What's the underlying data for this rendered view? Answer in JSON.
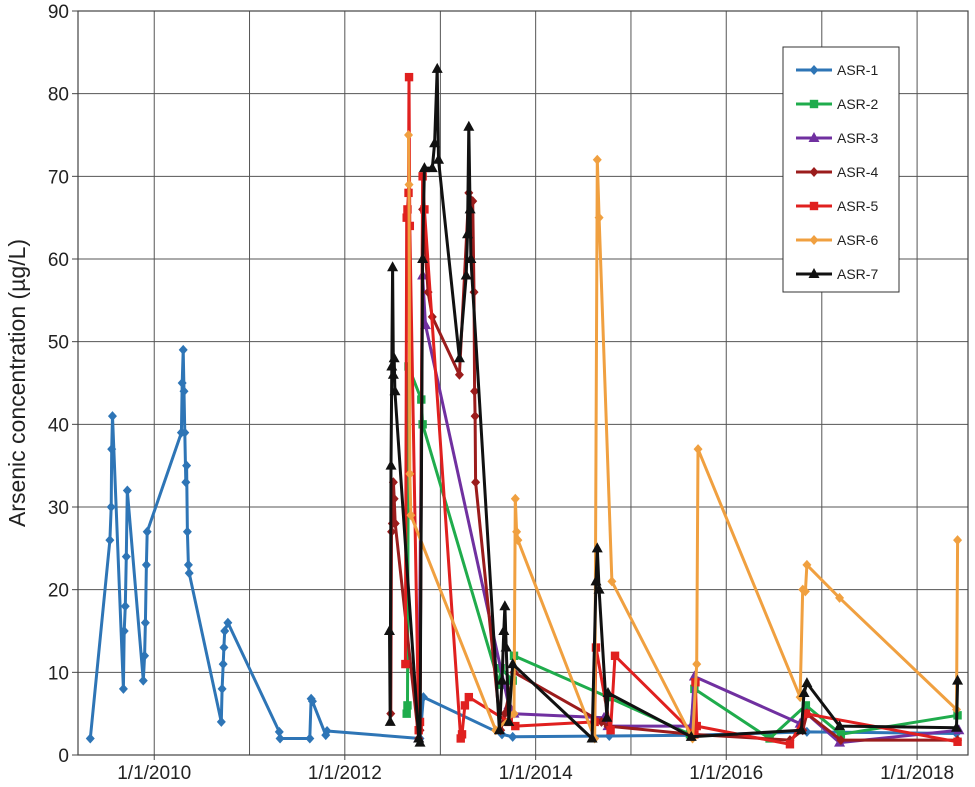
{
  "chart_data": {
    "type": "line",
    "title": "",
    "xlabel": "",
    "ylabel": "Arsenic concentration (µg/L)",
    "ylim": [
      0,
      90
    ],
    "xlim": [
      "2009-03-15",
      "2018-07-15"
    ],
    "y_ticks": [
      "0",
      "10",
      "20",
      "30",
      "40",
      "50",
      "60",
      "70",
      "80",
      "90"
    ],
    "x_ticks": [
      {
        "date": "2010-01-01",
        "label": "1/1/2010"
      },
      {
        "date": "2012-01-01",
        "label": "1/1/2012"
      },
      {
        "date": "2014-01-01",
        "label": "1/1/2014"
      },
      {
        "date": "2016-01-01",
        "label": "1/1/2016"
      },
      {
        "date": "2018-01-01",
        "label": "1/1/2018"
      }
    ],
    "x_grid": [
      "2009-01-01",
      "2010-01-01",
      "2011-01-01",
      "2012-01-01",
      "2013-01-01",
      "2014-01-01",
      "2015-01-01",
      "2016-01-01",
      "2017-01-01",
      "2018-01-01"
    ],
    "grid": true,
    "legend_position": "top-right",
    "series": [
      {
        "name": "ASR-1",
        "color": "#2e75b6",
        "marker": "diamond",
        "points": [
          [
            "2009-05-01",
            2
          ],
          [
            "2009-07-15",
            26
          ],
          [
            "2009-07-20",
            30
          ],
          [
            "2009-07-22",
            37
          ],
          [
            "2009-07-25",
            41
          ],
          [
            "2009-09-05",
            8
          ],
          [
            "2009-09-08",
            15
          ],
          [
            "2009-09-12",
            18
          ],
          [
            "2009-09-16",
            24
          ],
          [
            "2009-09-20",
            32
          ],
          [
            "2009-11-20",
            9
          ],
          [
            "2009-11-25",
            12
          ],
          [
            "2009-11-28",
            16
          ],
          [
            "2009-12-02",
            23
          ],
          [
            "2009-12-05",
            27
          ],
          [
            "2010-04-15",
            39
          ],
          [
            "2010-04-18",
            45
          ],
          [
            "2010-04-22",
            49
          ],
          [
            "2010-04-25",
            44
          ],
          [
            "2010-04-28",
            39
          ],
          [
            "2010-05-02",
            33
          ],
          [
            "2010-05-05",
            35
          ],
          [
            "2010-05-08",
            27
          ],
          [
            "2010-05-12",
            23
          ],
          [
            "2010-05-15",
            22
          ],
          [
            "2010-09-15",
            4
          ],
          [
            "2010-09-18",
            8
          ],
          [
            "2010-09-22",
            11
          ],
          [
            "2010-09-25",
            13
          ],
          [
            "2010-09-28",
            15
          ],
          [
            "2010-10-10",
            16
          ],
          [
            "2011-04-25",
            2.8
          ],
          [
            "2011-04-28",
            2
          ],
          [
            "2011-08-20",
            2
          ],
          [
            "2011-08-25",
            6.8
          ],
          [
            "2011-08-30",
            6.5
          ],
          [
            "2011-10-20",
            2.4
          ],
          [
            "2011-10-25",
            2.9
          ],
          [
            "2012-10-15",
            2
          ],
          [
            "2012-10-28",
            7
          ],
          [
            "2013-08-25",
            2.5
          ],
          [
            "2013-10-05",
            2.2
          ],
          [
            "2014-10-10",
            2.3
          ],
          [
            "2015-08-25",
            2.4
          ],
          [
            "2016-11-05",
            2.8
          ],
          [
            "2018-06-01",
            2.6
          ]
        ]
      },
      {
        "name": "ASR-2",
        "color": "#1fac4c",
        "marker": "square",
        "points": [
          [
            "2012-08-25",
            5
          ],
          [
            "2012-08-28",
            6
          ],
          [
            "2012-09-01",
            47
          ],
          [
            "2012-10-20",
            43
          ],
          [
            "2012-10-25",
            40
          ],
          [
            "2013-08-15",
            8.5
          ],
          [
            "2013-08-20",
            10.5
          ],
          [
            "2013-10-05",
            9
          ],
          [
            "2013-10-10",
            12
          ],
          [
            "2014-10-05",
            7
          ],
          [
            "2015-08-15",
            2.5
          ],
          [
            "2015-09-01",
            8
          ],
          [
            "2016-06-15",
            2
          ],
          [
            "2016-11-01",
            6
          ],
          [
            "2017-03-15",
            2.5
          ],
          [
            "2018-06-05",
            4.8
          ]
        ]
      },
      {
        "name": "ASR-3",
        "color": "#7030a0",
        "marker": "triangle",
        "points": [
          [
            "2012-10-10",
            2
          ],
          [
            "2012-10-25",
            58
          ],
          [
            "2012-11-05",
            52
          ],
          [
            "2013-09-20",
            6
          ],
          [
            "2013-10-10",
            5
          ],
          [
            "2014-09-20",
            4.5
          ],
          [
            "2014-10-05",
            3.5
          ],
          [
            "2015-08-20",
            3.5
          ],
          [
            "2015-09-01",
            9.5
          ],
          [
            "2016-10-10",
            3.8
          ],
          [
            "2016-11-05",
            5
          ],
          [
            "2017-03-10",
            1.5
          ],
          [
            "2018-06-10",
            3
          ]
        ]
      },
      {
        "name": "ASR-4",
        "color": "#9b1c1c",
        "marker": "diamond",
        "points": [
          [
            "2012-06-25",
            5
          ],
          [
            "2012-06-28",
            27
          ],
          [
            "2012-07-01",
            28
          ],
          [
            "2012-07-05",
            33
          ],
          [
            "2012-07-08",
            31
          ],
          [
            "2012-07-12",
            28
          ],
          [
            "2012-10-10",
            2
          ],
          [
            "2012-10-15",
            3
          ],
          [
            "2012-10-25",
            66
          ],
          [
            "2012-11-15",
            56
          ],
          [
            "2012-12-01",
            53
          ],
          [
            "2013-03-15",
            46
          ],
          [
            "2013-04-20",
            68
          ],
          [
            "2013-05-05",
            67
          ],
          [
            "2013-05-10",
            56
          ],
          [
            "2013-05-12",
            44
          ],
          [
            "2013-05-14",
            41
          ],
          [
            "2013-05-16",
            33
          ],
          [
            "2013-08-20",
            3
          ],
          [
            "2013-09-05",
            5
          ],
          [
            "2013-10-10",
            10
          ],
          [
            "2014-09-10",
            4
          ],
          [
            "2014-10-05",
            3.5
          ],
          [
            "2015-08-20",
            2.5
          ],
          [
            "2016-09-01",
            1.8
          ],
          [
            "2016-10-20",
            3
          ],
          [
            "2016-11-05",
            5
          ],
          [
            "2017-03-15",
            1.8
          ],
          [
            "2018-06-05",
            1.8
          ]
        ]
      },
      {
        "name": "ASR-5",
        "color": "#e0201f",
        "marker": "square",
        "points": [
          [
            "2012-08-20",
            11
          ],
          [
            "2012-08-25",
            65
          ],
          [
            "2012-08-28",
            66
          ],
          [
            "2012-09-01",
            68
          ],
          [
            "2012-09-03",
            82
          ],
          [
            "2012-09-06",
            64
          ],
          [
            "2012-10-10",
            3
          ],
          [
            "2012-10-15",
            4
          ],
          [
            "2012-10-25",
            70
          ],
          [
            "2012-11-01",
            66
          ],
          [
            "2013-03-20",
            2
          ],
          [
            "2013-03-25",
            2.5
          ],
          [
            "2013-04-05",
            6
          ],
          [
            "2013-04-20",
            7
          ],
          [
            "2013-09-20",
            4
          ],
          [
            "2013-10-15",
            3.5
          ],
          [
            "2014-08-15",
            4
          ],
          [
            "2014-08-20",
            13
          ],
          [
            "2014-10-15",
            3
          ],
          [
            "2014-11-01",
            12
          ],
          [
            "2015-09-01",
            2.5
          ],
          [
            "2015-09-05",
            8.8
          ],
          [
            "2015-09-10",
            3.5
          ],
          [
            "2016-09-01",
            1.3
          ],
          [
            "2016-11-01",
            5
          ],
          [
            "2018-06-05",
            1.6
          ]
        ]
      },
      {
        "name": "ASR-6",
        "color": "#f0a040",
        "marker": "diamond",
        "points": [
          [
            "2012-09-01",
            75
          ],
          [
            "2012-09-03",
            69
          ],
          [
            "2012-09-06",
            34
          ],
          [
            "2012-09-10",
            29
          ],
          [
            "2013-08-01",
            3
          ],
          [
            "2013-10-10",
            5
          ],
          [
            "2013-10-15",
            31
          ],
          [
            "2013-10-20",
            27
          ],
          [
            "2013-10-25",
            26
          ],
          [
            "2014-08-15",
            2
          ],
          [
            "2014-08-25",
            72
          ],
          [
            "2014-09-01",
            65
          ],
          [
            "2014-10-20",
            21
          ],
          [
            "2015-08-25",
            2
          ],
          [
            "2015-09-10",
            11
          ],
          [
            "2015-09-15",
            37
          ],
          [
            "2016-10-10",
            7
          ],
          [
            "2016-10-20",
            20
          ],
          [
            "2016-10-30",
            19.8
          ],
          [
            "2016-11-05",
            23
          ],
          [
            "2017-03-10",
            19
          ],
          [
            "2018-06-01",
            5.5
          ],
          [
            "2018-06-05",
            26
          ]
        ]
      },
      {
        "name": "ASR-7",
        "color": "#111111",
        "marker": "triangle",
        "points": [
          [
            "2012-06-20",
            15
          ],
          [
            "2012-06-23",
            4
          ],
          [
            "2012-06-26",
            35
          ],
          [
            "2012-06-29",
            47
          ],
          [
            "2012-07-02",
            59
          ],
          [
            "2012-07-05",
            46
          ],
          [
            "2012-07-08",
            48
          ],
          [
            "2012-07-11",
            44
          ],
          [
            "2012-10-10",
            2
          ],
          [
            "2012-10-15",
            1.5
          ],
          [
            "2012-10-25",
            60
          ],
          [
            "2012-11-01",
            71
          ],
          [
            "2012-12-01",
            71
          ],
          [
            "2012-12-10",
            74
          ],
          [
            "2012-12-20",
            83
          ],
          [
            "2012-12-25",
            72
          ],
          [
            "2013-03-15",
            48
          ],
          [
            "2013-04-10",
            58
          ],
          [
            "2013-04-15",
            63
          ],
          [
            "2013-04-20",
            76
          ],
          [
            "2013-04-25",
            66
          ],
          [
            "2013-04-28",
            60
          ],
          [
            "2013-08-15",
            3
          ],
          [
            "2013-08-25",
            9
          ],
          [
            "2013-09-01",
            15
          ],
          [
            "2013-09-05",
            18
          ],
          [
            "2013-09-10",
            13
          ],
          [
            "2013-09-20",
            4
          ],
          [
            "2013-10-05",
            11
          ],
          [
            "2014-08-05",
            2
          ],
          [
            "2014-08-20",
            21
          ],
          [
            "2014-08-25",
            25
          ],
          [
            "2014-09-01",
            20
          ],
          [
            "2014-10-01",
            4.5
          ],
          [
            "2014-10-05",
            7.5
          ],
          [
            "2015-08-20",
            2.2
          ],
          [
            "2016-10-15",
            3
          ],
          [
            "2016-10-25",
            7.5
          ],
          [
            "2016-11-05",
            8.7
          ],
          [
            "2017-03-10",
            3.5
          ],
          [
            "2018-06-01",
            3.3
          ],
          [
            "2018-06-05",
            9
          ]
        ]
      }
    ]
  }
}
